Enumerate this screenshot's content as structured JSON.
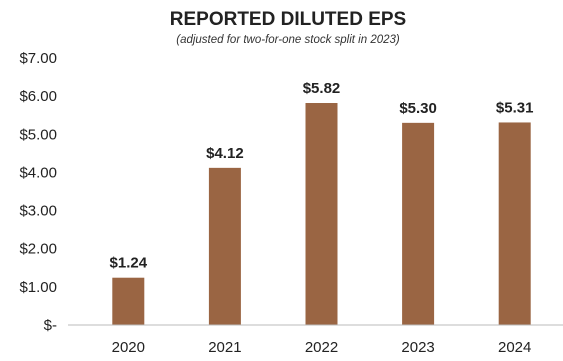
{
  "chart_data": {
    "type": "bar",
    "title": "REPORTED DILUTED EPS",
    "subtitle": "(adjusted for two-for-one stock split in 2023)",
    "categories": [
      "2020",
      "2021",
      "2022",
      "2023",
      "2024"
    ],
    "values": [
      1.24,
      4.12,
      5.82,
      5.3,
      5.31
    ],
    "data_labels": [
      "$1.24",
      "$4.12",
      "$5.82",
      "$5.30",
      "$5.31"
    ],
    "yticks": [
      0,
      1,
      2,
      3,
      4,
      5,
      6,
      7
    ],
    "ytick_labels": [
      "$-",
      "$1.00",
      "$2.00",
      "$3.00",
      "$4.00",
      "$5.00",
      "$6.00",
      "$7.00"
    ],
    "ylim": [
      0,
      7
    ],
    "xlabel": "",
    "ylabel": "",
    "grid": false,
    "legend": "none",
    "colors": {
      "bar": "#9a6543",
      "text": "#222222",
      "axis": "#bbbbbb"
    }
  }
}
